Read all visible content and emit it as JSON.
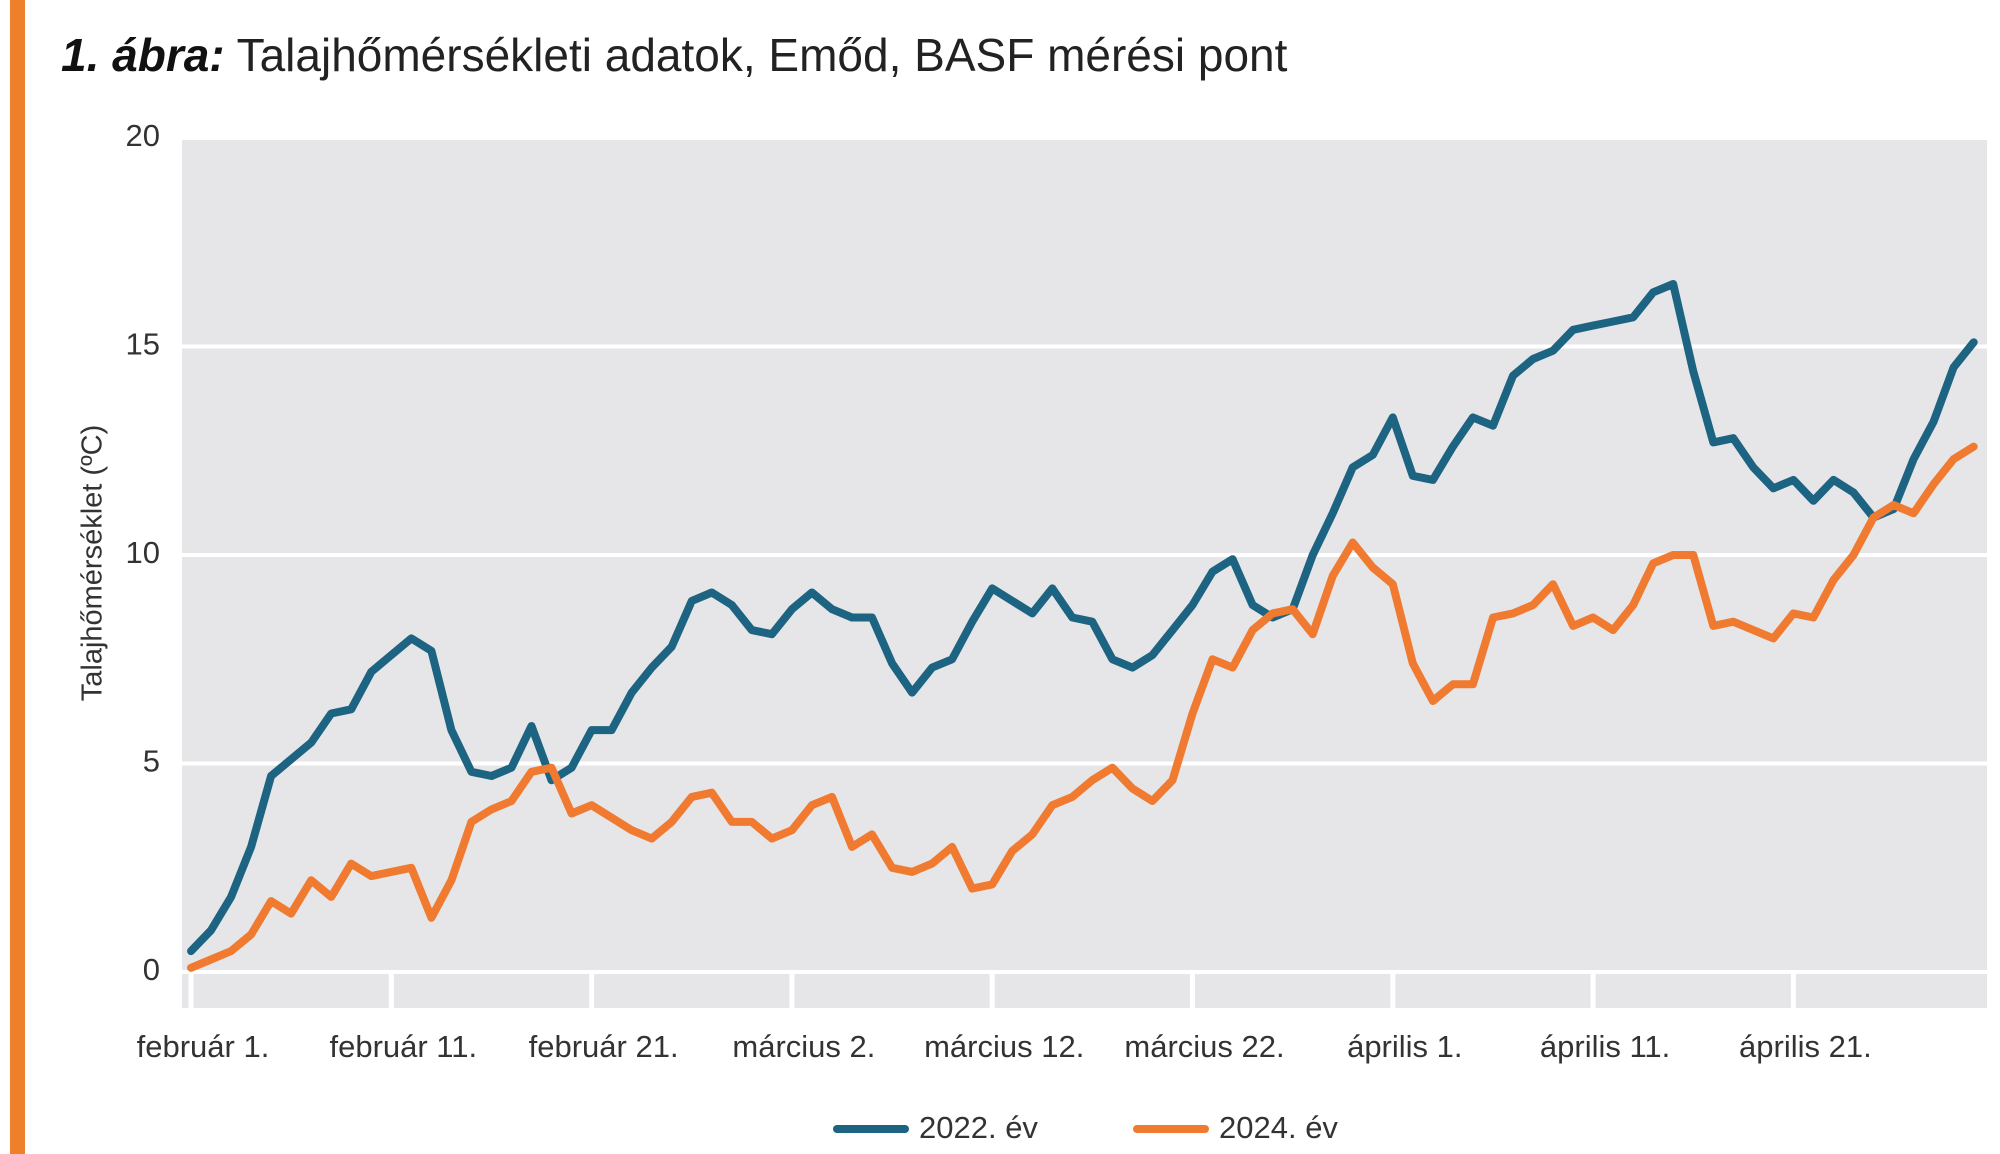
{
  "chart_data": {
    "type": "line",
    "title_prefix": "1. ábra:",
    "title": "Talajhőmérsékleti adatok, Emőd, BASF mérési pont",
    "y_label": "Talajhőmérséklet (ºC)",
    "categories": [
      "február 1.",
      null,
      null,
      null,
      null,
      null,
      null,
      null,
      null,
      null,
      "február 11.",
      null,
      null,
      null,
      null,
      null,
      null,
      null,
      null,
      null,
      "február 21.",
      null,
      null,
      null,
      null,
      null,
      null,
      null,
      null,
      null,
      "március 2.",
      null,
      null,
      null,
      null,
      null,
      null,
      null,
      null,
      null,
      "március 12.",
      null,
      null,
      null,
      null,
      null,
      null,
      null,
      null,
      null,
      "március 22.",
      null,
      null,
      null,
      null,
      null,
      null,
      null,
      null,
      null,
      "április 1.",
      null,
      null,
      null,
      null,
      null,
      null,
      null,
      null,
      null,
      "április 11.",
      null,
      null,
      null,
      null,
      null,
      null,
      null,
      null,
      null,
      "április 21.",
      null,
      null,
      null,
      null,
      null,
      null,
      null,
      null,
      null
    ],
    "series": [
      {
        "name": "2022. év",
        "color": "#1d6382",
        "values": [
          0.5,
          1.0,
          1.8,
          3.0,
          4.7,
          5.1,
          5.5,
          6.2,
          6.3,
          7.2,
          7.6,
          8.0,
          7.7,
          5.8,
          4.8,
          4.7,
          4.9,
          5.9,
          4.6,
          4.9,
          5.8,
          5.8,
          6.7,
          7.3,
          7.8,
          8.9,
          9.1,
          8.8,
          8.2,
          8.1,
          8.7,
          9.1,
          8.7,
          8.5,
          8.5,
          7.4,
          6.7,
          7.3,
          7.5,
          8.4,
          9.2,
          8.9,
          8.6,
          9.2,
          8.5,
          8.4,
          7.5,
          7.3,
          7.6,
          8.2,
          8.8,
          9.6,
          9.9,
          8.8,
          8.5,
          8.7,
          10.0,
          11.0,
          12.1,
          12.4,
          13.3,
          11.9,
          11.8,
          12.6,
          13.3,
          13.1,
          14.3,
          14.7,
          14.9,
          15.4,
          15.5,
          15.6,
          15.7,
          16.3,
          16.5,
          14.4,
          12.7,
          12.8,
          12.1,
          11.6,
          11.8,
          11.3,
          11.8,
          11.5,
          10.9,
          11.1,
          12.3,
          13.2,
          14.5,
          15.1
        ]
      },
      {
        "name": "2024. év",
        "color": "#ef7a30",
        "values": [
          0.1,
          0.3,
          0.5,
          0.9,
          1.7,
          1.4,
          2.2,
          1.8,
          2.6,
          2.3,
          2.4,
          2.5,
          1.3,
          2.2,
          3.6,
          3.9,
          4.1,
          4.8,
          4.9,
          3.8,
          4.0,
          3.7,
          3.4,
          3.2,
          3.6,
          4.2,
          4.3,
          3.6,
          3.6,
          3.2,
          3.4,
          4.0,
          4.2,
          3.0,
          3.3,
          2.5,
          2.4,
          2.6,
          3.0,
          2.0,
          2.1,
          2.9,
          3.3,
          4.0,
          4.2,
          4.6,
          4.9,
          4.4,
          4.1,
          4.6,
          6.2,
          7.5,
          7.3,
          8.2,
          8.6,
          8.7,
          8.1,
          9.5,
          10.3,
          9.7,
          9.3,
          7.4,
          6.5,
          6.9,
          6.9,
          8.5,
          8.6,
          8.8,
          9.3,
          8.3,
          8.5,
          8.2,
          8.8,
          9.8,
          10.0,
          10.0,
          8.3,
          8.4,
          8.2,
          8.0,
          8.6,
          8.5,
          9.4,
          10.0,
          10.9,
          11.2,
          11.0,
          11.7,
          12.3,
          12.6
        ]
      }
    ],
    "ylim": [
      0,
      20
    ],
    "yticks": [
      0,
      5,
      10,
      15,
      20
    ],
    "grid": true,
    "legend": "bottom"
  }
}
